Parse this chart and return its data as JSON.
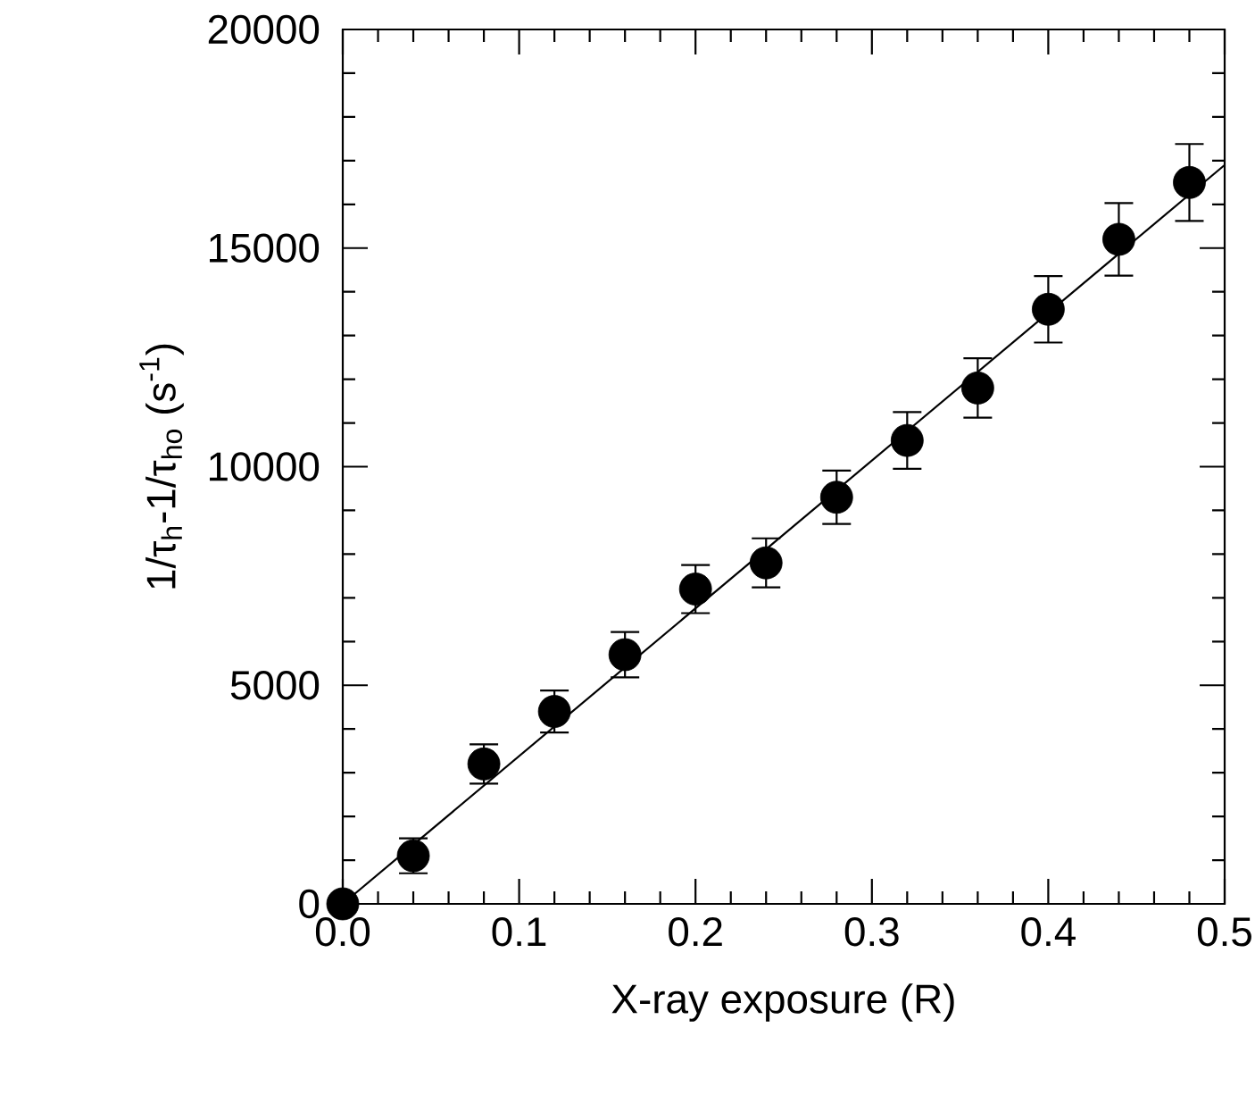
{
  "chart_data": {
    "type": "scatter",
    "xlabel": "X-ray exposure (R)",
    "ylabel": "1/τ$_{h}$-1/τ$_{ho}$ (s$^{-1}$)",
    "xlim": [
      0,
      0.5
    ],
    "ylim": [
      0,
      20000
    ],
    "xticks": [
      {
        "value": 0,
        "label": "0.0"
      },
      {
        "value": 0.1,
        "label": "0.1"
      },
      {
        "value": 0.2,
        "label": "0.2"
      },
      {
        "value": 0.3,
        "label": "0.3"
      },
      {
        "value": 0.4,
        "label": "0.4"
      },
      {
        "value": 0.5,
        "label": "0.5"
      }
    ],
    "yticks": [
      0,
      5000,
      10000,
      15000,
      20000
    ],
    "grid": false,
    "marker": "circle",
    "series": [
      {
        "color": "#000000",
        "x": [
          0,
          0.04,
          0.08,
          0.12,
          0.16,
          0.2,
          0.24,
          0.28,
          0.32,
          0.36,
          0.4,
          0.44,
          0.48
        ],
        "values": [
          0,
          1100,
          3200,
          4400,
          5700,
          7200,
          7800,
          9300,
          10600,
          11800,
          13600,
          15200,
          16500
        ],
        "errors": [
          null,
          400,
          450,
          480,
          520,
          550,
          560,
          610,
          650,
          680,
          760,
          830,
          880
        ]
      },
      {
        "type": "line",
        "color": "#000000",
        "marker": "none",
        "x": [
          0,
          0.5
        ],
        "values": [
          0,
          16900
        ]
      }
    ]
  }
}
